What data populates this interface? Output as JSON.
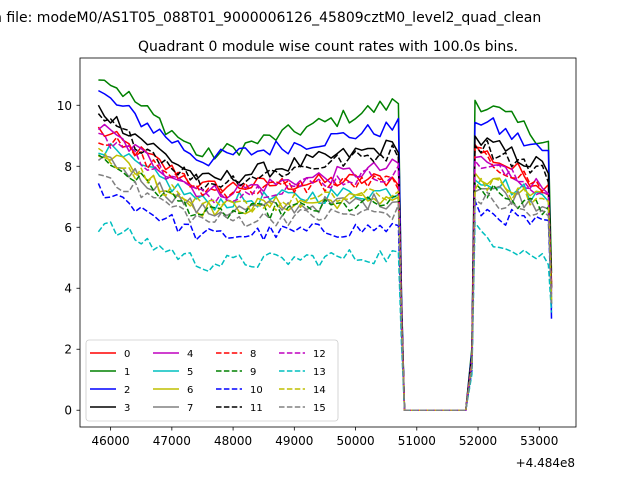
{
  "figure": {
    "suptitle": "n file: modeM0/AS1T05_088T01_9000006126_45809cztM0_level2_quad_clean",
    "title": "Quadrant 0 module wise count rates with 100.0s bins.",
    "offset_label": "+4.484e8"
  },
  "chart_data": {
    "type": "line",
    "title": "Quadrant 0 module wise count rates with 100.0s bins.",
    "xlabel": "",
    "ylabel": "",
    "x_offset": 448400000,
    "xlim": [
      45500,
      53600
    ],
    "ylim": [
      -0.55,
      11.55
    ],
    "xticks": [
      46000,
      47000,
      48000,
      49000,
      50000,
      51000,
      52000,
      53000
    ],
    "yticks": [
      0,
      2,
      4,
      6,
      8,
      10
    ],
    "grid": false,
    "legend": {
      "placement": "lower-left",
      "ncol": 4
    },
    "segments": {
      "active1": [
        45800,
        50700
      ],
      "drop": [
        50750,
        50800
      ],
      "gap": [
        50800,
        51850
      ],
      "rise": [
        51850,
        51950
      ],
      "active2": [
        51950,
        53150
      ],
      "end": 53200
    },
    "series": [
      {
        "name": "0",
        "color": "#ff0000",
        "dash": "solid",
        "start": 9.2,
        "plateau": 7.3,
        "mid_end": 7.6,
        "seg2_start": 8.6,
        "seg2_end": 7.3,
        "end_val": 4.2
      },
      {
        "name": "1",
        "color": "#008000",
        "dash": "solid",
        "start": 11.1,
        "plateau": 8.3,
        "mid_end": 10.1,
        "seg2_start": 10.2,
        "seg2_end": 8.8,
        "end_val": 4.5
      },
      {
        "name": "2",
        "color": "#0000ff",
        "dash": "solid",
        "start": 10.4,
        "plateau": 8.2,
        "mid_end": 9.3,
        "seg2_start": 9.6,
        "seg2_end": 8.4,
        "end_val": 3.0
      },
      {
        "name": "3",
        "color": "#000000",
        "dash": "solid",
        "start": 9.9,
        "plateau": 7.5,
        "mid_end": 8.7,
        "seg2_start": 8.9,
        "seg2_end": 7.9,
        "end_val": 4.0
      },
      {
        "name": "4",
        "color": "#bf00bf",
        "dash": "solid",
        "start": 9.3,
        "plateau": 7.1,
        "mid_end": 8.0,
        "seg2_start": 8.3,
        "seg2_end": 7.2,
        "end_val": 3.9
      },
      {
        "name": "5",
        "color": "#00bfbf",
        "dash": "solid",
        "start": 8.7,
        "plateau": 6.8,
        "mid_end": 7.2,
        "seg2_start": 7.7,
        "seg2_end": 6.9,
        "end_val": 3.7
      },
      {
        "name": "6",
        "color": "#bfbf00",
        "dash": "solid",
        "start": 8.6,
        "plateau": 6.6,
        "mid_end": 7.0,
        "seg2_start": 7.6,
        "seg2_end": 6.8,
        "end_val": 3.6
      },
      {
        "name": "7",
        "color": "#808080",
        "dash": "solid",
        "start": 8.4,
        "plateau": 6.5,
        "mid_end": 6.9,
        "seg2_start": 7.4,
        "seg2_end": 6.7,
        "end_val": 3.5
      },
      {
        "name": "8",
        "color": "#ff0000",
        "dash": "dashed",
        "start": 9.0,
        "plateau": 7.2,
        "mid_end": 7.5,
        "seg2_start": 8.4,
        "seg2_end": 7.2,
        "end_val": 4.1
      },
      {
        "name": "9",
        "color": "#008000",
        "dash": "dashed",
        "start": 8.3,
        "plateau": 6.4,
        "mid_end": 6.8,
        "seg2_start": 7.3,
        "seg2_end": 6.5,
        "end_val": 3.4
      },
      {
        "name": "10",
        "color": "#0000ff",
        "dash": "dashed",
        "start": 7.3,
        "plateau": 5.7,
        "mid_end": 6.0,
        "seg2_start": 6.6,
        "seg2_end": 6.0,
        "end_val": 3.3
      },
      {
        "name": "11",
        "color": "#000000",
        "dash": "dashed",
        "start": 9.6,
        "plateau": 7.4,
        "mid_end": 8.5,
        "seg2_start": 8.8,
        "seg2_end": 7.7,
        "end_val": 4.0
      },
      {
        "name": "12",
        "color": "#bf00bf",
        "dash": "dashed",
        "start": 9.1,
        "plateau": 7.0,
        "mid_end": 7.8,
        "seg2_start": 8.2,
        "seg2_end": 7.1,
        "end_val": 3.8
      },
      {
        "name": "13",
        "color": "#00bfbf",
        "dash": "dashed",
        "start": 6.1,
        "plateau": 4.8,
        "mid_end": 5.1,
        "seg2_start": 5.9,
        "seg2_end": 4.9,
        "end_val": 3.2
      },
      {
        "name": "14",
        "color": "#bfbf00",
        "dash": "dashed",
        "start": 8.5,
        "plateau": 6.6,
        "mid_end": 7.1,
        "seg2_start": 7.5,
        "seg2_end": 6.8,
        "end_val": 3.6
      },
      {
        "name": "15",
        "color": "#808080",
        "dash": "dashed",
        "start": 7.8,
        "plateau": 6.2,
        "mid_end": 6.5,
        "seg2_start": 7.0,
        "seg2_end": 6.3,
        "end_val": 3.5
      }
    ]
  }
}
